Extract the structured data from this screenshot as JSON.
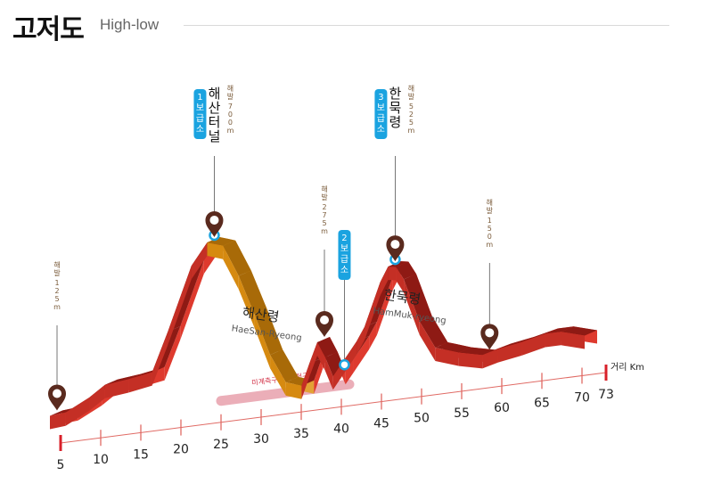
{
  "header": {
    "title": "고저도",
    "subtitle": "High-low"
  },
  "chart_data": {
    "type": "area",
    "title": "고저도",
    "subtitle": "High-low",
    "xlabel": "거리 Km",
    "x_ticks": [
      5,
      10,
      15,
      20,
      25,
      30,
      35,
      40,
      45,
      50,
      55,
      60,
      65,
      70,
      73
    ],
    "xlim": [
      5,
      73
    ],
    "ylim": [
      0,
      750
    ],
    "elevation_unit": "m",
    "series": [
      {
        "x": [
          5,
          7,
          10,
          12,
          15,
          18,
          20,
          23,
          25,
          27,
          29,
          31,
          33,
          35,
          37,
          38,
          39,
          40,
          41,
          42,
          44,
          45,
          47,
          48,
          49,
          50,
          52,
          54,
          57,
          60,
          62,
          65,
          68,
          70,
          73
        ],
        "y": [
          125,
          130,
          175,
          215,
          225,
          240,
          385,
          620,
          700,
          680,
          560,
          410,
          250,
          140,
          120,
          200,
          275,
          215,
          140,
          180,
          260,
          310,
          470,
          525,
          520,
          470,
          305,
          200,
          170,
          150,
          165,
          180,
          200,
          200,
          175
        ]
      }
    ],
    "peaks": [
      {
        "x": 5,
        "name": "",
        "elev_label": "해발",
        "elev": "125m",
        "station": ""
      },
      {
        "x": 25,
        "name": "해산터널",
        "elev_label": "해발",
        "elev": "700m",
        "station": "1보급소"
      },
      {
        "x": 39,
        "name": "",
        "elev_label": "해발",
        "elev": "275m",
        "station": ""
      },
      {
        "x": 48,
        "name": "한묵령",
        "elev_label": "해발",
        "elev": "525m",
        "station": "3보급소"
      },
      {
        "x": 60,
        "name": "",
        "elev_label": "해발",
        "elev": "150m",
        "station": ""
      }
    ],
    "supply_stations": [
      {
        "x": 42,
        "label": "2보급소"
      }
    ],
    "sections": [
      {
        "name": "해산령",
        "roman": "HaeSan-Ryeong",
        "x_from": 25,
        "x_to": 37,
        "color": "#d68a10"
      }
    ],
    "region_labels": [
      {
        "name": "해산령",
        "roman": "HaeSan-Ryeong",
        "x": 31
      },
      {
        "name": "한묵령",
        "roman": "HamMuk-ryeong",
        "x": 49
      }
    ],
    "no_timing": {
      "label": "미계측구간 (위험구역)",
      "x_from": 25,
      "x_to": 41
    },
    "colors": {
      "main": "#c42f25",
      "main_top": "#de3a2e",
      "main_side": "#8e1a14",
      "section": "#d68a10",
      "pin": "#5a2a1e",
      "station": "#1aa3e0",
      "axis": "#e06a64"
    }
  }
}
